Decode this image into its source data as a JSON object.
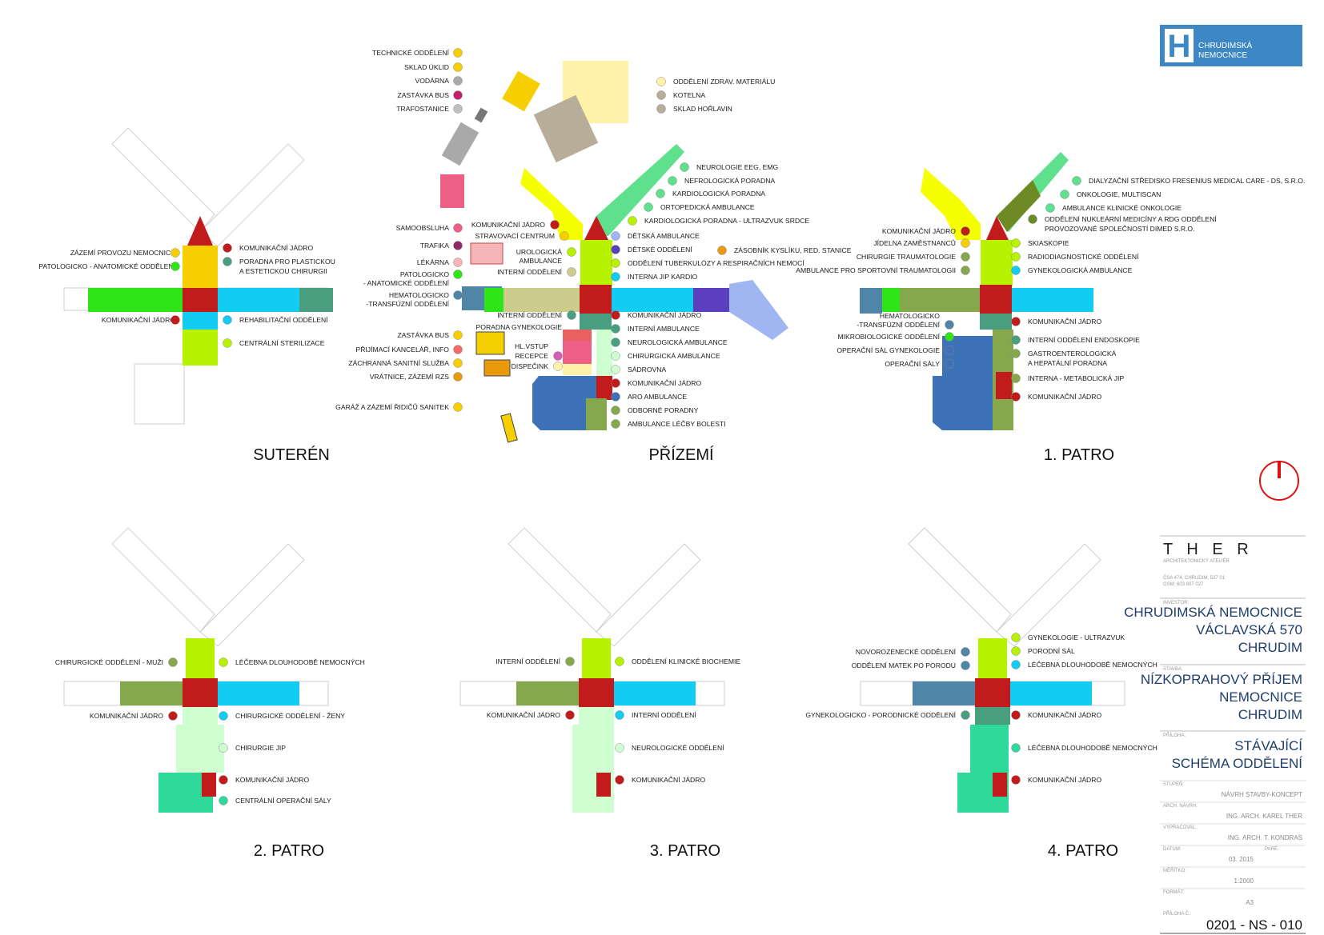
{
  "logo": {
    "letter": "H",
    "line1": "CHRUDIMSKÁ",
    "line2": "NEMOCNICE"
  },
  "colors": {
    "yellow": "#f5ff00",
    "lime": "#b7f200",
    "green": "#2ee617",
    "red": "#c11b1b",
    "cyan": "#13ccf2",
    "teal": "#4a9e80",
    "olive": "#86a84c",
    "blue": "#3e72b8",
    "steel": "#4f86a8",
    "gold": "#f7cf00",
    "mint": "#5fe08c",
    "pale": "#cfffd0",
    "khaki": "#cccc8c",
    "pink": "#ee5f86",
    "grey": "#a9a9a9",
    "taupe": "#b7ad99",
    "cream": "#fff1a8",
    "orange": "#e89a0b",
    "violet": "#5a3fbf",
    "lightblue": "#9fb6f2",
    "darkolive": "#6e8a24",
    "seagreen": "#2fd99a"
  },
  "panels": {
    "suteren": {
      "title": "SUTERÉN",
      "labels": [
        "ZÁZEMÍ PROVOZU NEMOCNICE",
        "PATOLOGICKO - ANATOMICKÉ ODDĚLENÍ",
        "KOMUNIKAČNÍ JÁDRO",
        "KOMUNIKAČNÍ JÁDRO",
        "PORADNA PRO PLASTICKOU",
        "A ESTETICKOU CHIRURGII",
        "REHABILITAČNÍ ODDĚLENÍ",
        "CENTRÁLNÍ STERILIZACE"
      ]
    },
    "prizemi": {
      "title": "PŘÍZEMÍ",
      "labels": [
        "TECHNICKÉ ODDĚLENÍ",
        "SKLAD ÚKLID",
        "VODÁRNA",
        "ZASTÁVKA BUS",
        "TRAFOSTANICE",
        "ODDĚLENÍ ZDRAV. MATERIÁLU",
        "KOTELNA",
        "SKLAD HOŘLAVIN",
        "NEUROLOGIE EEG, EMG",
        "NEFROLOGICKÁ PORADNA",
        "KARDIOLOGICKÁ PORADNA",
        "ORTOPEDICKÁ AMBULANCE",
        "KARDIOLOGICKÁ PORADNA - ULTRAZVUK SRDCE",
        "DĚTSKÁ AMBULANCE",
        "DĚTSKÉ ODDĚLENÍ",
        "ODDĚLENÍ TUBERKULÓZY A RESPIRAČNÍCH NEMOCÍ",
        "INTERNA JIP KARDIO",
        "ZÁSOBNÍK KYSLÍKU, RED. STANICE",
        "SAMOOBSLUHA",
        "TRAFIKA",
        "LÉKÁRNA",
        "PATOLOGICKO",
        "- ANATOMICKÉ ODDĚLENÍ",
        "HEMATOLOGICKO",
        "-TRANSFÚZNÍ ODDĚLENÍ",
        "KOMUNIKAČNÍ JÁDRO",
        "STRAVOVACÍ CENTRUM",
        "UROLOGICKÁ",
        "AMBULANCE",
        "INTERNÍ ODDĚLENÍ",
        "ZASTÁVKA BUS",
        "PŘIJÍMACÍ KANCELÁŘ, INFO",
        "ZÁCHRANNÁ SANITNÍ SLUŽBA",
        "VRÁTNICE, ZÁZEMÍ RZS",
        "GARÁŽ A ZÁZEMÍ ŘIDIČŮ SANITEK",
        "INTERNÍ ODDĚLENÍ",
        "PORADNA GYNEKOLOGIE",
        "HL.VSTUP",
        "RECEPCE",
        "DISPEČINK",
        "KOMUNIKAČNÍ JÁDRO",
        "INTERNÍ AMBULANCE",
        "NEUROLOGICKÁ AMBULANCE",
        "CHIRURGICKÁ AMBULANCE",
        "SÁDROVNA",
        "KOMUNIKAČNÍ JÁDRO",
        "ARO AMBULANCE",
        "ODBORNÉ PORADNY",
        "AMBULANCE LÉČBY BOLESTI"
      ]
    },
    "patro1": {
      "title": "1. PATRO",
      "labels": [
        "DIALYZAČNÍ STŘEDISKO FRESENIUS MEDICAL CARE - DS, S.R.O.",
        "ONKOLOGIE, MULTISCAN",
        "AMBULANCE KLINICKÉ ONKOLOGIE",
        "ODDĚLENÍ NUKLEÁRNÍ MEDICÍNY A RDG ODDĚLENÍ",
        "PROVOZOVANÉ SPOLEČNOSTÍ DIMED S.R.O.",
        "SKIASKOPIE",
        "RADIODIAGNOSTICKÉ ODDĚLENÍ",
        "GYNEKOLOGICKÁ AMBULANCE",
        "KOMUNIKAČNÍ JÁDRO",
        "JÍDELNA ZAMĚSTNANCŮ",
        "CHIRURGIE TRAUMATOLOGIE",
        "AMBULANCE PRO SPORTOVNÍ TRAUMATOLOGII",
        "HEMATOLOGICKO",
        "-TRANSFÚZNÍ ODDĚLENÍ",
        "MIKROBIOLOGICKÉ ODDĚLENÍ",
        "OPERAČNÍ SÁL GYNEKOLOGIE",
        "OPERAČNÍ SÁLY",
        "KOMUNIKAČNÍ JÁDRO",
        "INTERNÍ ODDĚLENÍ ENDOSKOPIE",
        "GASTROENTEROLOGICKÁ",
        "A HEPATÁLNÍ PORADNA",
        "INTERNA - METABOLICKÁ JIP",
        "KOMUNIKAČNÍ JÁDRO"
      ]
    },
    "patro2": {
      "title": "2. PATRO",
      "labels": [
        "CHIRURGICKÉ ODDĚLENÍ - MUŽI",
        "LÉČEBNA DLOUHODOBĚ NEMOCNÝCH",
        "KOMUNIKAČNÍ JÁDRO",
        "CHIRURGICKÉ ODDĚLENÍ - ŽENY",
        "CHIRURGIE JIP",
        "KOMUNIKAČNÍ JÁDRO",
        "CENTRÁLNÍ OPERAČNÍ SÁLY"
      ]
    },
    "patro3": {
      "title": "3. PATRO",
      "labels": [
        "INTERNÍ ODDĚLENÍ",
        "ODDĚLENÍ KLINICKÉ BIOCHEMIE",
        "KOMUNIKAČNÍ JÁDRO",
        "INTERNÍ ODDĚLENÍ",
        "NEUROLOGICKÉ ODDĚLENÍ",
        "KOMUNIKAČNÍ JÁDRO"
      ]
    },
    "patro4": {
      "title": "4. PATRO",
      "labels": [
        "GYNEKOLOGIE - ULTRAZVUK",
        "PORODNÍ SÁL",
        "LÉČEBNA DLOUHODOBĚ NEMOCNÝCH",
        "NOVOROZENECKÉ ODDĚLENÍ",
        "ODDĚLENÍ MATEK PO PORODU",
        "GYNEKOLOGICKO - PORODNICKÉ ODDĚLENÍ",
        "KOMUNIKAČNÍ JÁDRO",
        "LÉČEBNA DLOUHODOBĚ NEMOCNÝCH",
        "KOMUNIKAČNÍ JÁDRO"
      ]
    }
  },
  "titleblock": {
    "firm": "T H E R",
    "firm_sub": "ARCHITEKTONICKÝ ATELIÉR",
    "address": "ČSA 474, CHRUDIM, 537 01",
    "phone": "GSM: 603 807 027",
    "investor_label": "INVESTOR:",
    "investor": [
      "CHRUDIMSKÁ NEMOCNICE",
      "VÁCLAVSKÁ 570",
      "CHRUDIM"
    ],
    "project_label": "STAVBA:",
    "project": [
      "NÍZKOPRAHOVÝ PŘÍJEM",
      "NEMOCNICE",
      "CHRUDIM"
    ],
    "drawing_label": "PŘÍLOHA:",
    "drawing": [
      "STÁVAJÍCÍ",
      "SCHÉMA ODDĚLENÍ"
    ],
    "stage_label": "STUPEŇ:",
    "stage": "NÁVRH STAVBY-KONCEPT",
    "author_label": "ARCH. NÁVRH:",
    "author": "ING. ARCH. KAREL THER",
    "drafted_label": "VYPRACOVAL:",
    "drafted": "ING. ARCH. T. KONDRAS",
    "date_label": "DATUM:",
    "date": "03. 2015",
    "copy_label": "PARÉ:",
    "scale_label": "MĚŘÍTKO:",
    "scale": "1:2000",
    "format_label": "FORMÁT:",
    "format": "A3",
    "number_label": "PŘÍLOHA Č.:",
    "number": "0201 - NS - 010"
  }
}
